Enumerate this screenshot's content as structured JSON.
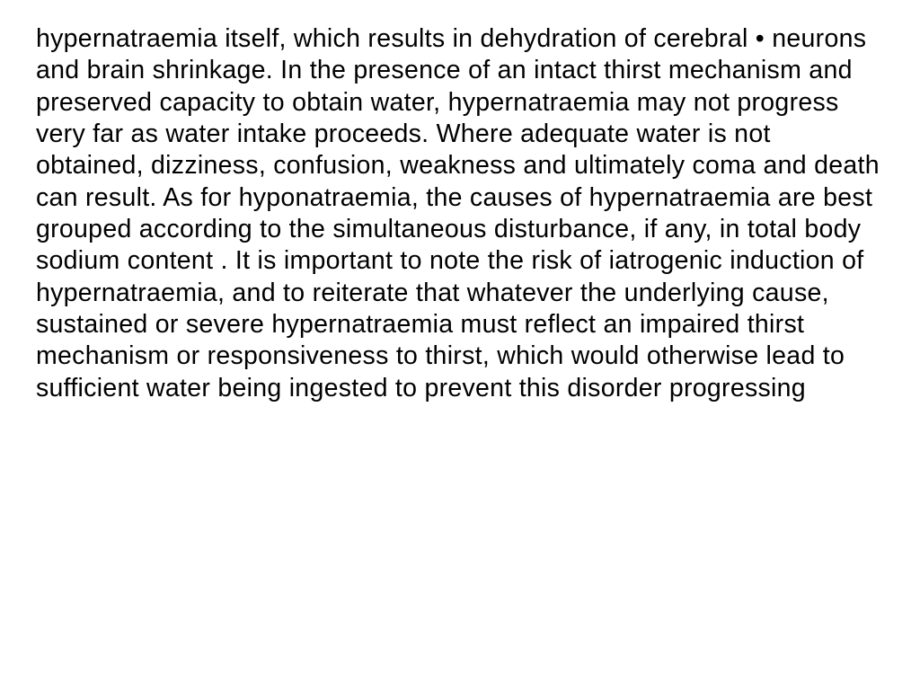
{
  "slide": {
    "body_text": "hypernatraemia itself, which results in dehydration of cerebral • neurons and brain shrinkage. In the presence of an intact thirst mechanism and preserved capacity to obtain water, hypernatraemia may not progress very far as water intake proceeds. Where adequate water is not obtained, dizziness, confusion, weakness and ultimately coma and death can result. As for hyponatraemia, the causes of hypernatraemia are best grouped according to the simultaneous disturbance, if any, in total body sodium content . It is important to note the risk of iatrogenic induction of hypernatraemia, and to reiterate that whatever the underlying cause, sustained or severe hypernatraemia must reflect an impaired thirst mechanism or responsiveness to thirst, which would otherwise lead to sufficient water being ingested to prevent this disorder progressing",
    "text_color": "#000000",
    "background_color": "#ffffff",
    "font_size_pt": 21,
    "font_family": "Arial"
  }
}
